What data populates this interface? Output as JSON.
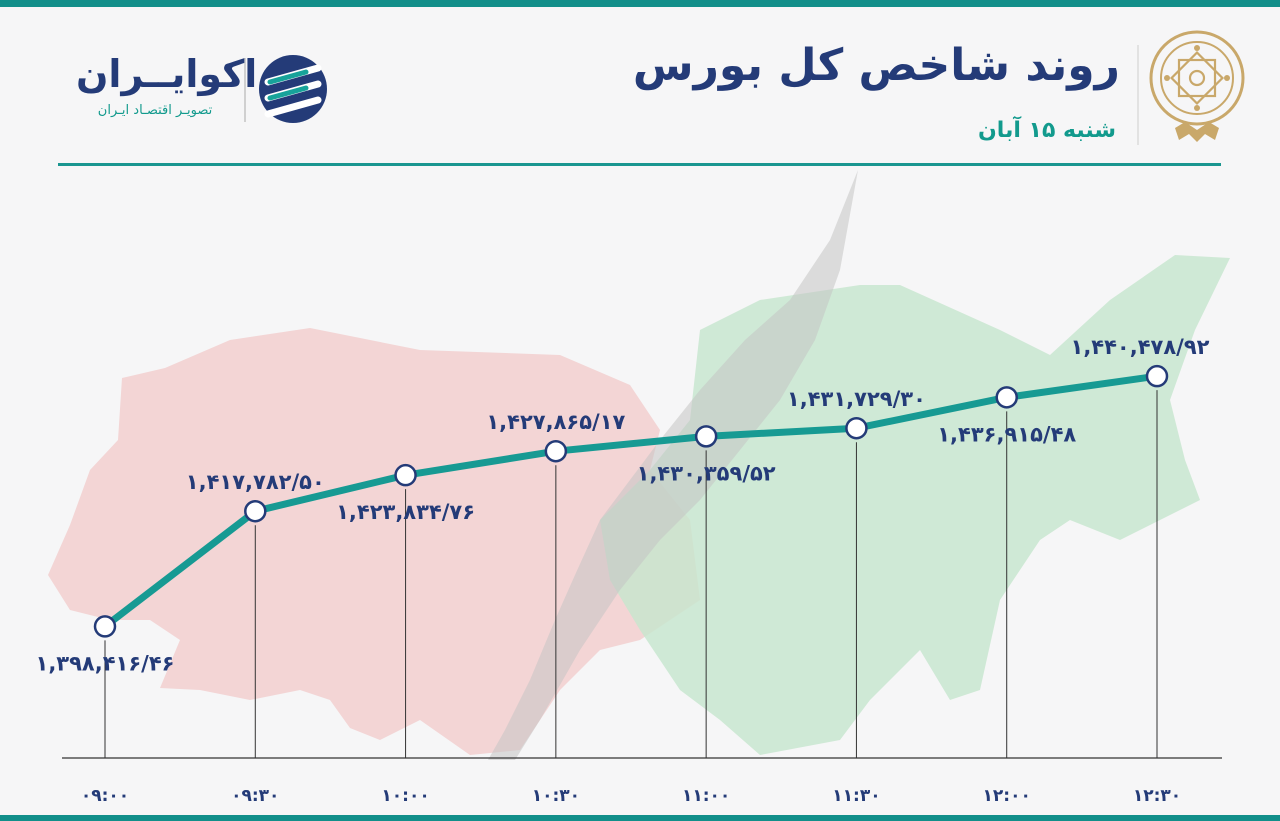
{
  "header": {
    "title": "روند شاخص کل بورس",
    "date": "شنبه ۱۵ آبان"
  },
  "brand": {
    "name": "اکوایــران",
    "tagline": "تصویـر اقتصـاد ایـران",
    "logo_icon": "stacked-stripes-logo-icon",
    "seal_icon": "tehran-stock-exchange-seal-icon"
  },
  "colors": {
    "line": "#179a93",
    "accent_dark": "#243b78",
    "accent_teal": "#129a8d",
    "bear": "#f0c3c3",
    "bull": "#bfe2c8",
    "arrow": "#cfcfcf"
  },
  "chart_data": {
    "type": "line",
    "categories": [
      "۰۹:۰۰",
      "۰۹:۳۰",
      "۱۰:۰۰",
      "۱۰:۳۰",
      "۱۱:۰۰",
      "۱۱:۳۰",
      "۱۲:۰۰",
      "۱۲:۳۰"
    ],
    "values": [
      1398416.46,
      1417782.5,
      1423834.76,
      1427865.17,
      1430359.52,
      1431729.3,
      1436915.48,
      1440478.92
    ],
    "value_labels": [
      "۱,۳۹۸,۴۱۶/۴۶",
      "۱,۴۱۷,۷۸۲/۵۰",
      "۱,۴۲۳,۸۳۴/۷۶",
      "۱,۴۲۷,۸۶۵/۱۷",
      "۱,۴۳۰,۳۵۹/۵۲",
      "۱,۴۳۱,۷۲۹/۳۰",
      "۱,۴۳۶,۹۱۵/۴۸",
      "۱,۴۴۰,۴۷۸/۹۲"
    ],
    "value_label_positions": [
      "below",
      "above",
      "below",
      "above",
      "below",
      "above",
      "below",
      "above"
    ],
    "title": "روند شاخص کل بورس",
    "xlabel": "",
    "ylabel": "",
    "ylim": [
      1380000,
      1460000
    ],
    "grid": false,
    "legend": "none"
  }
}
